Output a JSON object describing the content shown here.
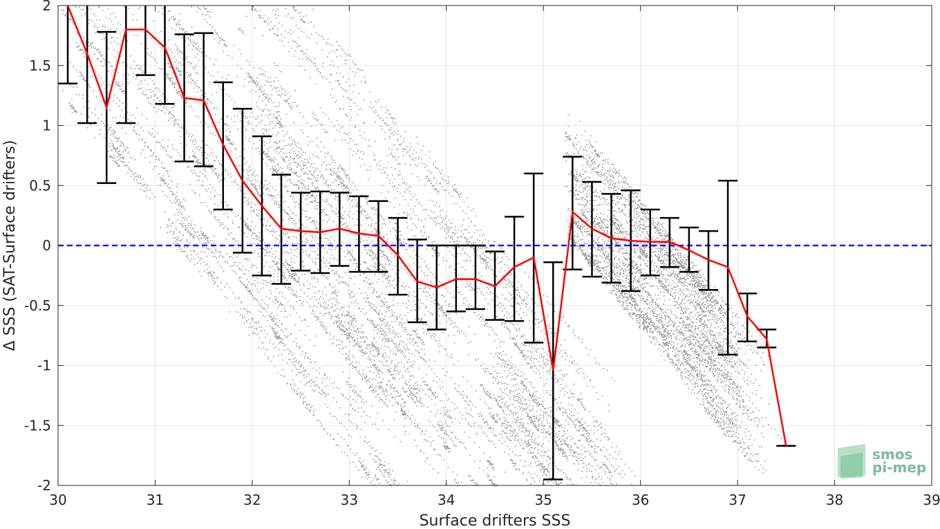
{
  "chart_data": {
    "type": "scatter",
    "title": "",
    "xlabel": "Surface drifters SSS",
    "ylabel": "Δ SSS (SAT-Surface drifters)",
    "xlim": [
      30,
      39
    ],
    "ylim": [
      -2,
      2
    ],
    "xticks": [
      30,
      31,
      32,
      33,
      34,
      35,
      36,
      37,
      38,
      39
    ],
    "yticks": [
      2,
      1.5,
      1,
      0.5,
      0,
      -0.5,
      -1,
      -1.5,
      -2
    ],
    "grid": true,
    "reference_line": {
      "y": 0,
      "style": "dashed",
      "color": "#1a1aff"
    },
    "colors": {
      "scatter": "#999999",
      "mean": "#ff0000",
      "errorbar": "#000000",
      "zero": "#1a1aff"
    },
    "series": [
      {
        "type": "line",
        "x": [
          30.1,
          30.3,
          30.5,
          30.7,
          30.9,
          31.1,
          31.3,
          31.5,
          31.7,
          31.9,
          32.1,
          32.3,
          32.5,
          32.7,
          32.9,
          33.1,
          33.3,
          33.5,
          33.7,
          33.9,
          34.1,
          34.3,
          34.5,
          34.7,
          34.9,
          35.1,
          35.3,
          35.5,
          35.7,
          35.9,
          36.1,
          36.3,
          36.5,
          36.7,
          36.9,
          37.1,
          37.3,
          37.5
        ],
        "values": [
          2.0,
          1.6,
          1.15,
          1.8,
          1.8,
          1.65,
          1.23,
          1.21,
          0.84,
          0.54,
          0.33,
          0.14,
          0.12,
          0.11,
          0.14,
          0.1,
          0.08,
          -0.08,
          -0.3,
          -0.35,
          -0.28,
          -0.28,
          -0.34,
          -0.18,
          -0.1,
          -1.04,
          0.28,
          0.14,
          0.06,
          0.04,
          0.03,
          0.03,
          -0.04,
          -0.12,
          -0.18,
          -0.59,
          -0.78,
          -1.67
        ]
      },
      {
        "type": "errorbar",
        "x": [
          30.1,
          30.3,
          30.5,
          30.7,
          30.9,
          31.1,
          31.3,
          31.5,
          31.7,
          31.9,
          32.1,
          32.3,
          32.5,
          32.7,
          32.9,
          33.1,
          33.3,
          33.5,
          33.7,
          33.9,
          34.1,
          34.3,
          34.5,
          34.7,
          34.9,
          35.1,
          35.3,
          35.5,
          35.7,
          35.9,
          36.1,
          36.3,
          36.5,
          36.7,
          36.9,
          37.1,
          37.3,
          37.5
        ],
        "lower": [
          1.35,
          1.02,
          0.52,
          1.02,
          1.42,
          1.18,
          0.7,
          0.66,
          0.3,
          -0.06,
          -0.25,
          -0.32,
          -0.21,
          -0.23,
          -0.17,
          -0.22,
          -0.22,
          -0.41,
          -0.64,
          -0.7,
          -0.55,
          -0.53,
          -0.62,
          -0.63,
          -0.81,
          -1.95,
          -0.2,
          -0.26,
          -0.31,
          -0.38,
          -0.25,
          -0.18,
          -0.22,
          -0.37,
          -0.91,
          -0.8,
          -0.85,
          -1.67
        ],
        "upper": [
          2.0,
          2.0,
          1.78,
          2.0,
          2.0,
          2.0,
          1.76,
          1.77,
          1.36,
          1.14,
          0.91,
          0.59,
          0.44,
          0.45,
          0.44,
          0.41,
          0.37,
          0.23,
          0.05,
          0.0,
          0.0,
          0.0,
          -0.05,
          0.24,
          0.6,
          -0.14,
          0.74,
          0.53,
          0.43,
          0.46,
          0.3,
          0.23,
          0.15,
          0.12,
          0.54,
          -0.4,
          -0.7,
          -1.67
        ]
      }
    ],
    "scatter_clusters": [
      {
        "x_range": [
          30.0,
          33.7
        ],
        "slope": -1.0,
        "intercept_range": [
          31.2,
          33.6
        ],
        "count": 4500
      },
      {
        "x_range": [
          31.8,
          35.4
        ],
        "slope": -1.0,
        "intercept_range": [
          32.0,
          34.6
        ],
        "count": 11000
      },
      {
        "x_range": [
          35.2,
          36.9
        ],
        "slope": -1.0,
        "intercept_range": [
          35.3,
          36.4
        ],
        "count": 6000
      },
      {
        "x_range": [
          34.4,
          35.9
        ],
        "slope": -1.0,
        "intercept_range": [
          33.0,
          34.1
        ],
        "count": 1200
      }
    ]
  },
  "logo": {
    "line1": "smos",
    "line2": "pi-mep"
  }
}
